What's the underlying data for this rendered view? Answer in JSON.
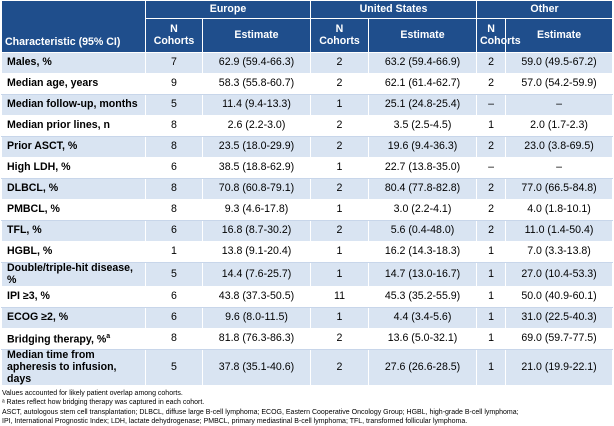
{
  "table": {
    "group_headers": [
      "Europe",
      "United States",
      "Other"
    ],
    "characteristic_header": "Characteristic (95% CI)",
    "n_cohorts_header": "N Cohorts",
    "estimate_header": "Estimate",
    "rows": [
      {
        "label": "Males, %",
        "eu_n": "7",
        "eu_est": "62.9 (59.4-66.3)",
        "us_n": "2",
        "us_est": "63.2 (59.4-66.9)",
        "ot_n": "2",
        "ot_est": "59.0 (49.5-67.2)"
      },
      {
        "label": "Median age, years",
        "eu_n": "9",
        "eu_est": "58.3 (55.8-60.7)",
        "us_n": "2",
        "us_est": "62.1 (61.4-62.7)",
        "ot_n": "2",
        "ot_est": "57.0 (54.2-59.9)"
      },
      {
        "label": "Median follow-up, months",
        "eu_n": "5",
        "eu_est": "11.4 (9.4-13.3)",
        "us_n": "1",
        "us_est": "25.1 (24.8-25.4)",
        "ot_n": "–",
        "ot_est": "–"
      },
      {
        "label": "Median prior lines, n",
        "eu_n": "8",
        "eu_est": "2.6 (2.2-3.0)",
        "us_n": "2",
        "us_est": "3.5 (2.5-4.5)",
        "ot_n": "1",
        "ot_est": "2.0 (1.7-2.3)"
      },
      {
        "label": "Prior ASCT, %",
        "eu_n": "8",
        "eu_est": "23.5 (18.0-29.9)",
        "us_n": "2",
        "us_est": "19.6 (9.4-36.3)",
        "ot_n": "2",
        "ot_est": "23.0 (3.8-69.5)"
      },
      {
        "label": "High LDH, %",
        "eu_n": "6",
        "eu_est": "38.5 (18.8-62.9)",
        "us_n": "1",
        "us_est": "22.7 (13.8-35.0)",
        "ot_n": "–",
        "ot_est": "–"
      },
      {
        "label": "DLBCL, %",
        "eu_n": "8",
        "eu_est": "70.8 (60.8-79.1)",
        "us_n": "2",
        "us_est": "80.4 (77.8-82.8)",
        "ot_n": "2",
        "ot_est": "77.0 (66.5-84.8)"
      },
      {
        "label": "PMBCL, %",
        "eu_n": "8",
        "eu_est": "9.3 (4.6-17.8)",
        "us_n": "1",
        "us_est": "3.0 (2.2-4.1)",
        "ot_n": "2",
        "ot_est": "4.0 (1.8-10.1)"
      },
      {
        "label": "TFL, %",
        "eu_n": "6",
        "eu_est": "16.8 (8.7-30.2)",
        "us_n": "2",
        "us_est": "5.6 (0.4-48.0)",
        "ot_n": "2",
        "ot_est": "11.0 (1.4-50.4)"
      },
      {
        "label": "HGBL, %",
        "eu_n": "1",
        "eu_est": "13.8 (9.1-20.4)",
        "us_n": "1",
        "us_est": "16.2 (14.3-18.3)",
        "ot_n": "1",
        "ot_est": "7.0 (3.3-13.8)"
      },
      {
        "label": "Double/triple-hit disease, %",
        "eu_n": "5",
        "eu_est": "14.4 (7.6-25.7)",
        "us_n": "1",
        "us_est": "14.7 (13.0-16.7)",
        "ot_n": "1",
        "ot_est": "27.0 (10.4-53.3)"
      },
      {
        "label": "IPI ≥3, %",
        "eu_n": "6",
        "eu_est": "43.8 (37.3-50.5)",
        "us_n": "11",
        "us_est": "45.3 (35.2-55.9)",
        "ot_n": "1",
        "ot_est": "50.0 (40.9-60.1)"
      },
      {
        "label": "ECOG ≥2, %",
        "eu_n": "6",
        "eu_est": "9.6 (8.0-11.5)",
        "us_n": "1",
        "us_est": "4.4 (3.4-5.6)",
        "ot_n": "1",
        "ot_est": "31.0 (22.5-40.3)"
      },
      {
        "label": "Bridging therapy, %",
        "label_sup": "a",
        "eu_n": "8",
        "eu_est": "81.8 (76.3-86.3)",
        "us_n": "2",
        "us_est": "13.6 (5.0-32.1)",
        "ot_n": "1",
        "ot_est": "69.0 (59.7-77.5)"
      },
      {
        "label": "Median time from apheresis to infusion, days",
        "eu_n": "5",
        "eu_est": "37.8 (35.1-40.6)",
        "us_n": "2",
        "us_est": "27.6 (26.6-28.5)",
        "ot_n": "1",
        "ot_est": "21.0 (19.9-22.1)"
      }
    ]
  },
  "footnotes": [
    "Values accounted for likely patient overlap among cohorts.",
    "ᵃ Rates reflect how bridging therapy was captured in each cohort.",
    "ASCT, autologous stem cell transplantation; DLBCL, diffuse large B-cell lymphoma; ECOG, Eastern Cooperative Oncology Group; HGBL, high-grade B-cell lymphoma;",
    "IPI, International Prognostic Index; LDH, lactate dehydrogenase; PMBCL, primary mediastinal B-cell lymphoma; TFL, transformed follicular lymphoma."
  ],
  "colors": {
    "header_bg": "#1f4e8c",
    "band_bg": "#d9e4f2"
  }
}
